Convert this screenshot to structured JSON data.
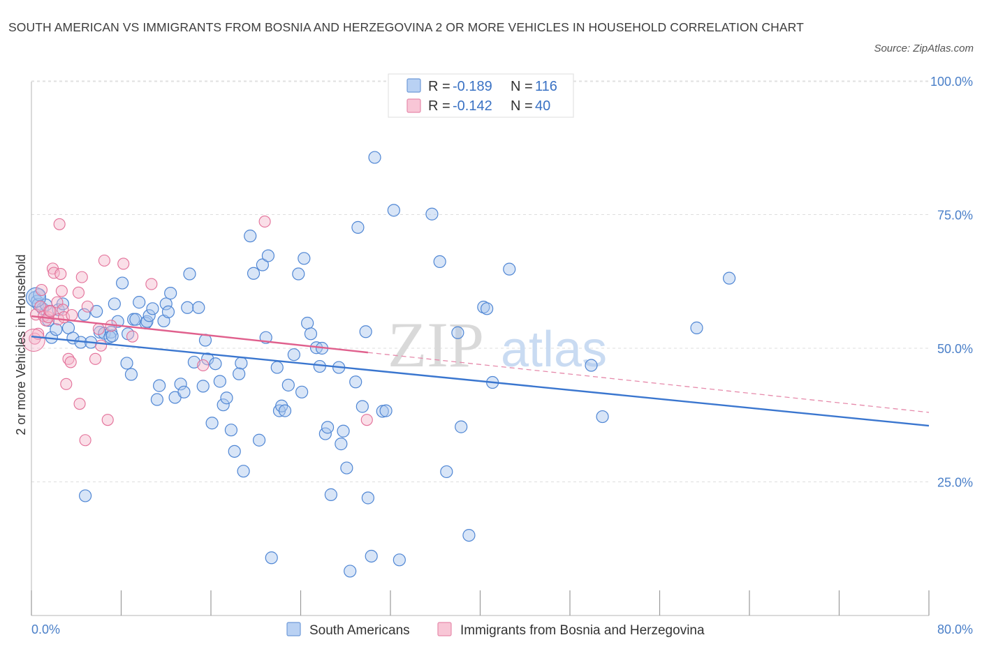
{
  "title": "SOUTH AMERICAN VS IMMIGRANTS FROM BOSNIA AND HERZEGOVINA 2 OR MORE VEHICLES IN HOUSEHOLD CORRELATION CHART",
  "source": "Source: ZipAtlas.com",
  "watermark": {
    "zip": "ZIP",
    "atlas": "atlas"
  },
  "legend": [
    {
      "r_label": "R =",
      "r_value": "-0.189",
      "n_label": "N =",
      "n_value": "116"
    },
    {
      "r_label": "R =",
      "r_value": "-0.142",
      "n_label": "N =",
      "n_value": "40"
    }
  ],
  "chart_data": {
    "type": "scatter",
    "xlabel": "",
    "ylabel": "2 or more Vehicles in Household",
    "xlim": [
      0,
      80
    ],
    "ylim": [
      0,
      100
    ],
    "x_tick_labels": [
      "0.0%",
      "80.0%"
    ],
    "y_ticks": [
      25,
      50,
      75,
      100
    ],
    "y_tick_labels": [
      "25.0%",
      "50.0%",
      "75.0%",
      "100.0%"
    ],
    "grid": true,
    "legend_position": "top-center",
    "colors": {
      "blue": "#4f86d4",
      "blue_fill": "#a9c6ee",
      "pink": "#e36f98",
      "pink_fill": "#f5b7cc"
    },
    "series": [
      {
        "name": "South Americans",
        "color": "#4f86d4",
        "trend": {
          "x": [
            0,
            80
          ],
          "y": [
            52.2,
            35.5
          ],
          "style": "solid"
        },
        "points": [
          [
            0.3,
            59.5
          ],
          [
            0.5,
            58.8
          ],
          [
            0.6,
            58.2
          ],
          [
            0.7,
            60.0
          ],
          [
            1.0,
            57.4
          ],
          [
            1.3,
            58.1
          ],
          [
            1.5,
            55.2
          ],
          [
            1.8,
            52.0
          ],
          [
            2.2,
            53.5
          ],
          [
            2.4,
            57.2
          ],
          [
            2.8,
            58.3
          ],
          [
            3.3,
            53.8
          ],
          [
            3.7,
            51.9
          ],
          [
            4.4,
            51.1
          ],
          [
            4.7,
            56.3
          ],
          [
            5.3,
            51.1
          ],
          [
            6.1,
            53.0
          ],
          [
            5.8,
            56.9
          ],
          [
            6.5,
            52.8
          ],
          [
            7.1,
            53.0
          ],
          [
            7.0,
            52.1
          ],
          [
            7.4,
            58.3
          ],
          [
            7.7,
            55.0
          ],
          [
            8.1,
            62.2
          ],
          [
            8.5,
            47.2
          ],
          [
            8.6,
            52.7
          ],
          [
            8.9,
            45.1
          ],
          [
            9.1,
            55.4
          ],
          [
            9.3,
            55.4
          ],
          [
            9.6,
            58.6
          ],
          [
            10.2,
            54.7
          ],
          [
            10.3,
            55.0
          ],
          [
            10.5,
            56.1
          ],
          [
            10.8,
            57.4
          ],
          [
            11.2,
            40.4
          ],
          [
            11.4,
            43.0
          ],
          [
            11.8,
            55.1
          ],
          [
            12.0,
            58.3
          ],
          [
            12.2,
            56.8
          ],
          [
            12.4,
            60.3
          ],
          [
            12.8,
            40.8
          ],
          [
            13.3,
            43.3
          ],
          [
            13.6,
            41.8
          ],
          [
            13.9,
            57.6
          ],
          [
            14.1,
            63.9
          ],
          [
            14.5,
            47.4
          ],
          [
            14.9,
            57.6
          ],
          [
            15.3,
            42.9
          ],
          [
            15.5,
            51.5
          ],
          [
            15.7,
            48.0
          ],
          [
            16.1,
            36.0
          ],
          [
            16.4,
            47.1
          ],
          [
            16.8,
            43.8
          ],
          [
            17.1,
            39.4
          ],
          [
            17.4,
            40.7
          ],
          [
            17.8,
            34.7
          ],
          [
            18.1,
            30.7
          ],
          [
            18.7,
            47.2
          ],
          [
            18.5,
            45.2
          ],
          [
            18.9,
            27.0
          ],
          [
            19.5,
            71.0
          ],
          [
            19.8,
            64.0
          ],
          [
            20.3,
            32.8
          ],
          [
            20.6,
            65.6
          ],
          [
            20.9,
            52.0
          ],
          [
            21.1,
            67.3
          ],
          [
            21.4,
            10.8
          ],
          [
            21.9,
            46.4
          ],
          [
            22.1,
            38.3
          ],
          [
            22.3,
            39.2
          ],
          [
            22.6,
            38.3
          ],
          [
            22.9,
            43.1
          ],
          [
            23.4,
            48.8
          ],
          [
            23.8,
            63.9
          ],
          [
            24.1,
            41.8
          ],
          [
            24.3,
            66.8
          ],
          [
            24.6,
            54.7
          ],
          [
            24.9,
            52.7
          ],
          [
            25.4,
            50.1
          ],
          [
            25.7,
            46.6
          ],
          [
            25.9,
            50.0
          ],
          [
            26.2,
            34.0
          ],
          [
            26.4,
            35.2
          ],
          [
            26.7,
            22.6
          ],
          [
            27.4,
            46.4
          ],
          [
            27.6,
            32.1
          ],
          [
            27.8,
            34.5
          ],
          [
            28.1,
            27.6
          ],
          [
            28.4,
            8.3
          ],
          [
            28.9,
            43.7
          ],
          [
            29.1,
            72.6
          ],
          [
            29.5,
            39.1
          ],
          [
            29.8,
            53.1
          ],
          [
            30.0,
            22.0
          ],
          [
            30.3,
            11.1
          ],
          [
            30.6,
            85.7
          ],
          [
            31.3,
            38.2
          ],
          [
            31.6,
            38.3
          ],
          [
            32.3,
            75.8
          ],
          [
            32.8,
            10.4
          ],
          [
            35.7,
            75.1
          ],
          [
            36.4,
            66.2
          ],
          [
            37.0,
            26.9
          ],
          [
            38.0,
            52.9
          ],
          [
            38.3,
            35.3
          ],
          [
            39.0,
            15.0
          ],
          [
            40.3,
            57.7
          ],
          [
            40.6,
            57.4
          ],
          [
            41.1,
            43.6
          ],
          [
            42.6,
            64.8
          ],
          [
            49.9,
            46.8
          ],
          [
            50.9,
            37.2
          ],
          [
            59.3,
            53.8
          ],
          [
            62.2,
            63.1
          ],
          [
            4.8,
            22.4
          ],
          [
            7.2,
            52.3
          ]
        ]
      },
      {
        "name": "Immigrants from Bosnia and Herzegovina",
        "color": "#e36f98",
        "trend": {
          "x": [
            0,
            30
          ],
          "y": [
            56.0,
            49.2
          ],
          "style": "solid",
          "extension": {
            "x": [
              30,
              80
            ],
            "y": [
              49.2,
              38.0
            ],
            "style": "dashed"
          }
        },
        "points": [
          [
            0.3,
            51.8
          ],
          [
            0.4,
            56.3
          ],
          [
            0.6,
            52.7
          ],
          [
            0.8,
            57.8
          ],
          [
            0.9,
            60.9
          ],
          [
            1.1,
            56.0
          ],
          [
            1.3,
            55.2
          ],
          [
            1.5,
            55.8
          ],
          [
            1.6,
            57.0
          ],
          [
            1.9,
            64.9
          ],
          [
            2.0,
            64.1
          ],
          [
            2.3,
            58.6
          ],
          [
            2.4,
            55.4
          ],
          [
            2.5,
            73.2
          ],
          [
            2.6,
            63.9
          ],
          [
            2.8,
            57.2
          ],
          [
            2.9,
            55.8
          ],
          [
            3.1,
            43.3
          ],
          [
            3.3,
            48.0
          ],
          [
            3.5,
            47.4
          ],
          [
            4.2,
            60.4
          ],
          [
            4.3,
            39.6
          ],
          [
            4.5,
            63.3
          ],
          [
            4.8,
            32.8
          ],
          [
            5.0,
            57.8
          ],
          [
            5.7,
            48.0
          ],
          [
            6.2,
            50.5
          ],
          [
            6.5,
            66.4
          ],
          [
            6.8,
            36.6
          ],
          [
            7.1,
            54.2
          ],
          [
            8.2,
            65.8
          ],
          [
            9.0,
            52.2
          ],
          [
            10.7,
            62.0
          ],
          [
            15.3,
            46.8
          ],
          [
            20.8,
            73.7
          ],
          [
            29.9,
            36.6
          ],
          [
            2.7,
            60.7
          ],
          [
            3.6,
            56.2
          ],
          [
            6.0,
            53.6
          ],
          [
            1.7,
            56.9
          ]
        ]
      }
    ]
  }
}
